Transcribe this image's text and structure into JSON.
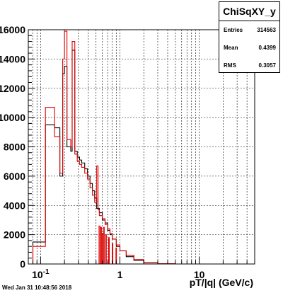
{
  "chart_data": {
    "type": "histogram",
    "x_scale": "log",
    "xlim": [
      0.07,
      50
    ],
    "ylim": [
      0,
      16000
    ],
    "xlabel": "pT/|q| (GeV/c)",
    "ylabel": "",
    "grid": true,
    "x_tick_labels": [
      {
        "v": 0.1,
        "label": "10",
        "exp": "-1"
      },
      {
        "v": 1,
        "label": "1"
      },
      {
        "v": 10,
        "label": "10"
      }
    ],
    "y_ticks": [
      0,
      2000,
      4000,
      6000,
      8000,
      10000,
      12000,
      14000,
      16000
    ],
    "y_tick_labels": [
      "0",
      "2000",
      "4000",
      "6000",
      "8000",
      "10000",
      "12000",
      "14000",
      "16000"
    ],
    "series": [
      {
        "color": "#000000",
        "bins": [
          [
            0.07,
            0.08,
            0
          ],
          [
            0.08,
            0.115,
            1500
          ],
          [
            0.115,
            0.15,
            9500
          ],
          [
            0.15,
            0.175,
            9300
          ],
          [
            0.175,
            0.19,
            6000
          ],
          [
            0.19,
            0.2,
            13000
          ],
          [
            0.2,
            0.215,
            13500
          ],
          [
            0.215,
            0.24,
            8000
          ],
          [
            0.24,
            0.25,
            7700
          ],
          [
            0.25,
            0.27,
            14600
          ],
          [
            0.27,
            0.29,
            7700
          ],
          [
            0.29,
            0.31,
            7300
          ],
          [
            0.31,
            0.33,
            7100
          ],
          [
            0.33,
            0.36,
            6900
          ],
          [
            0.36,
            0.39,
            6500
          ],
          [
            0.39,
            0.42,
            6000
          ],
          [
            0.42,
            0.45,
            5500
          ],
          [
            0.45,
            0.48,
            5000
          ],
          [
            0.48,
            0.51,
            4500
          ],
          [
            0.51,
            0.55,
            3800
          ],
          [
            0.55,
            0.6,
            3500
          ],
          [
            0.6,
            0.65,
            3000
          ],
          [
            0.65,
            0.7,
            2800
          ],
          [
            0.7,
            0.75,
            2300
          ],
          [
            0.75,
            0.8,
            2000
          ],
          [
            0.8,
            0.9,
            1700
          ],
          [
            0.9,
            1.0,
            1200
          ],
          [
            1.0,
            1.2,
            900
          ],
          [
            1.2,
            1.5,
            500
          ],
          [
            1.5,
            2.0,
            250
          ],
          [
            2.0,
            3.0,
            80
          ],
          [
            3.0,
            5.0,
            15
          ],
          [
            5.0,
            50,
            0
          ]
        ]
      },
      {
        "color": "#dd0000",
        "bins": [
          [
            0.07,
            0.08,
            0
          ],
          [
            0.08,
            0.115,
            1200
          ],
          [
            0.115,
            0.15,
            10700
          ],
          [
            0.15,
            0.175,
            8700
          ],
          [
            0.175,
            0.19,
            6200
          ],
          [
            0.19,
            0.2,
            14000
          ],
          [
            0.2,
            0.215,
            15900
          ],
          [
            0.215,
            0.24,
            8500
          ],
          [
            0.24,
            0.25,
            8000
          ],
          [
            0.25,
            0.27,
            15200
          ],
          [
            0.27,
            0.29,
            7500
          ],
          [
            0.29,
            0.31,
            7000
          ],
          [
            0.31,
            0.33,
            6800
          ],
          [
            0.33,
            0.36,
            6600
          ],
          [
            0.36,
            0.39,
            6200
          ],
          [
            0.39,
            0.42,
            5800
          ],
          [
            0.42,
            0.45,
            5200
          ],
          [
            0.45,
            0.48,
            4700
          ],
          [
            0.48,
            0.51,
            4200
          ],
          [
            0.51,
            0.53,
            6700
          ],
          [
            0.53,
            0.55,
            3700
          ],
          [
            0.55,
            0.6,
            3300
          ],
          [
            0.6,
            0.65,
            3100
          ],
          [
            0.65,
            0.7,
            2700
          ],
          [
            0.7,
            0.75,
            2400
          ],
          [
            0.75,
            0.8,
            2100
          ],
          [
            0.8,
            0.9,
            1700
          ],
          [
            0.9,
            1.0,
            1300
          ],
          [
            1.0,
            1.2,
            900
          ],
          [
            1.2,
            1.5,
            600
          ],
          [
            1.5,
            2.0,
            300
          ],
          [
            2.0,
            3.0,
            90
          ],
          [
            3.0,
            5.0,
            20
          ],
          [
            5.0,
            50,
            0
          ]
        ],
        "spikes": [
          [
            0.545,
            0.56,
            2600
          ],
          [
            0.57,
            0.585,
            2500
          ],
          [
            0.6,
            0.615,
            2100
          ],
          [
            0.62,
            0.635,
            2500
          ],
          [
            0.66,
            0.675,
            2000
          ],
          [
            0.72,
            0.735,
            1800
          ],
          [
            0.8,
            0.815,
            1400
          ],
          [
            0.89,
            0.905,
            1100
          ]
        ]
      }
    ]
  },
  "stats": {
    "title": "ChiSqXY_y",
    "rows": [
      {
        "label": "Entries",
        "value": "314563"
      },
      {
        "label": "Mean",
        "value": "0.4399"
      },
      {
        "label": "RMS",
        "value": "0.3057"
      }
    ]
  },
  "timestamp": "Wed Jan 31 10:48:56 2018"
}
